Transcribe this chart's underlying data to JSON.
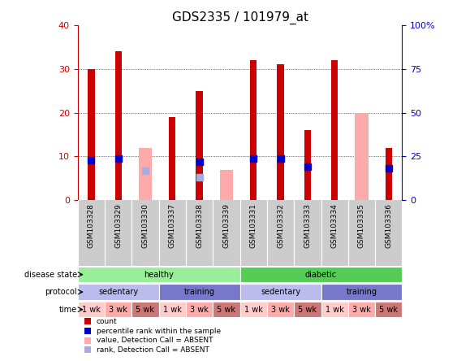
{
  "title": "GDS2335 / 101979_at",
  "samples": [
    "GSM103328",
    "GSM103329",
    "GSM103330",
    "GSM103337",
    "GSM103338",
    "GSM103339",
    "GSM103331",
    "GSM103332",
    "GSM103333",
    "GSM103334",
    "GSM103335",
    "GSM103336"
  ],
  "count": [
    30,
    34,
    null,
    19,
    25,
    null,
    32,
    31,
    16,
    32,
    null,
    12
  ],
  "percentile": [
    23,
    24,
    null,
    null,
    22,
    null,
    24,
    24,
    19,
    null,
    null,
    18
  ],
  "value_absent": [
    null,
    null,
    12,
    null,
    null,
    7,
    null,
    null,
    null,
    null,
    20,
    null
  ],
  "rank_absent": [
    null,
    null,
    17,
    null,
    13,
    null,
    null,
    null,
    null,
    null,
    null,
    null
  ],
  "ylim_left": [
    0,
    40
  ],
  "ylim_right": [
    0,
    100
  ],
  "yticks_left": [
    0,
    10,
    20,
    30,
    40
  ],
  "yticks_right": [
    0,
    25,
    50,
    75,
    100
  ],
  "yticklabels_right": [
    "0",
    "25",
    "50",
    "75",
    "100%"
  ],
  "bar_color_count": "#cc0000",
  "bar_color_value_absent": "#ffaaaa",
  "dot_color_percentile": "#0000cc",
  "dot_color_rank_absent": "#aaaadd",
  "disease_state": [
    {
      "label": "healthy",
      "start": 0,
      "end": 6,
      "color": "#99ee99"
    },
    {
      "label": "diabetic",
      "start": 6,
      "end": 12,
      "color": "#55cc55"
    }
  ],
  "protocol": [
    {
      "label": "sedentary",
      "start": 0,
      "end": 3,
      "color": "#bbbbee"
    },
    {
      "label": "training",
      "start": 3,
      "end": 6,
      "color": "#7777cc"
    },
    {
      "label": "sedentary",
      "start": 6,
      "end": 9,
      "color": "#bbbbee"
    },
    {
      "label": "training",
      "start": 9,
      "end": 12,
      "color": "#7777cc"
    }
  ],
  "time": [
    {
      "label": "1 wk",
      "start": 0,
      "end": 1,
      "color": "#ffcccc"
    },
    {
      "label": "3 wk",
      "start": 1,
      "end": 2,
      "color": "#ffaaaa"
    },
    {
      "label": "5 wk",
      "start": 2,
      "end": 3,
      "color": "#cc7777"
    },
    {
      "label": "1 wk",
      "start": 3,
      "end": 4,
      "color": "#ffcccc"
    },
    {
      "label": "3 wk",
      "start": 4,
      "end": 5,
      "color": "#ffaaaa"
    },
    {
      "label": "5 wk",
      "start": 5,
      "end": 6,
      "color": "#cc7777"
    },
    {
      "label": "1 wk",
      "start": 6,
      "end": 7,
      "color": "#ffcccc"
    },
    {
      "label": "3 wk",
      "start": 7,
      "end": 8,
      "color": "#ffaaaa"
    },
    {
      "label": "5 wk",
      "start": 8,
      "end": 9,
      "color": "#cc7777"
    },
    {
      "label": "1 wk",
      "start": 9,
      "end": 10,
      "color": "#ffcccc"
    },
    {
      "label": "3 wk",
      "start": 10,
      "end": 11,
      "color": "#ffaaaa"
    },
    {
      "label": "5 wk",
      "start": 11,
      "end": 12,
      "color": "#cc7777"
    }
  ],
  "legend_items": [
    {
      "label": "count",
      "color": "#cc0000"
    },
    {
      "label": "percentile rank within the sample",
      "color": "#0000cc"
    },
    {
      "label": "value, Detection Call = ABSENT",
      "color": "#ffaaaa"
    },
    {
      "label": "rank, Detection Call = ABSENT",
      "color": "#aaaadd"
    }
  ],
  "row_labels": [
    "disease state",
    "protocol",
    "time"
  ],
  "background_color": "#ffffff"
}
